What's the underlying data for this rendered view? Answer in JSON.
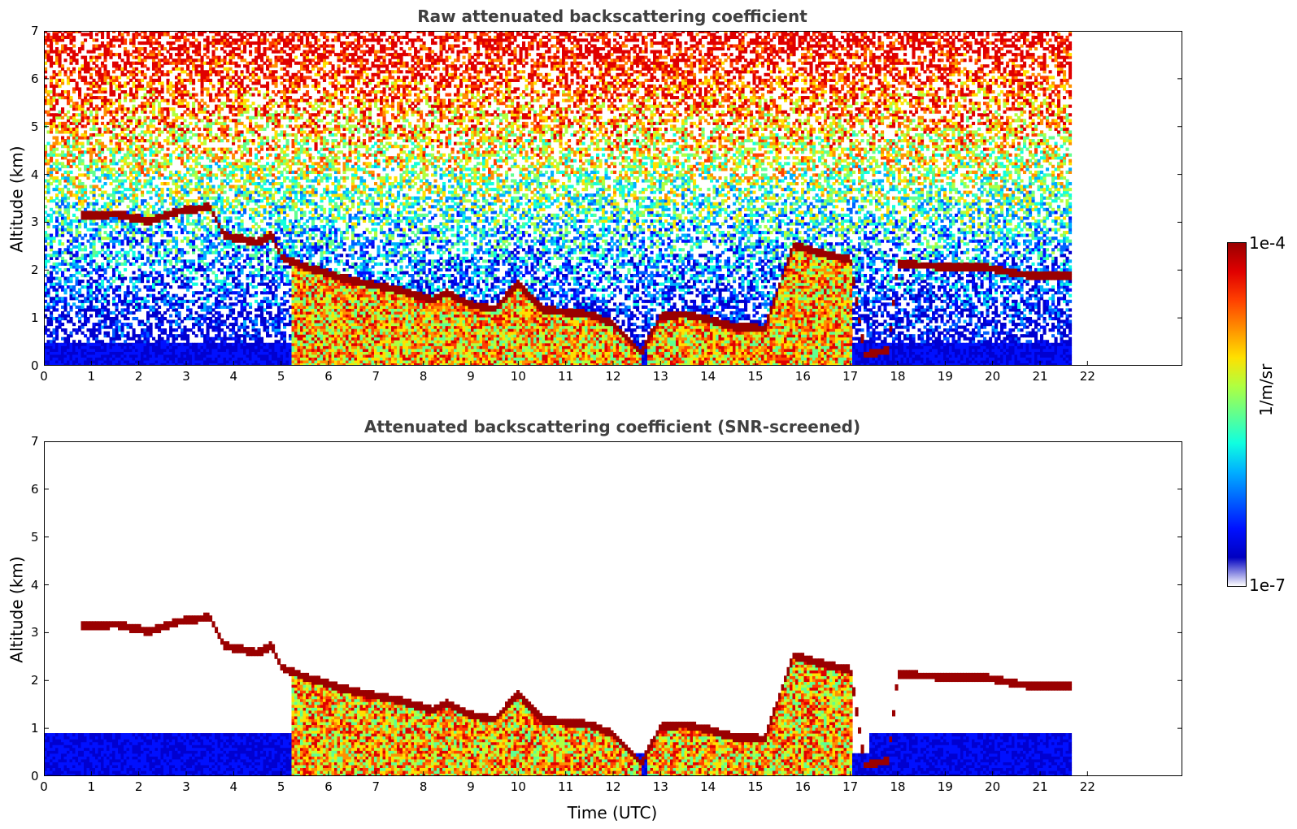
{
  "chart_data": [
    {
      "type": "heatmap",
      "title": "Raw attenuated backscattering coefficient",
      "xlabel": "",
      "ylabel": "Altitude (km)",
      "xlim": [
        0,
        24
      ],
      "ylim": [
        0,
        7
      ],
      "xticks": [
        0,
        1,
        2,
        3,
        4,
        5,
        6,
        7,
        8,
        9,
        10,
        11,
        12,
        13,
        14,
        15,
        16,
        17,
        18,
        19,
        20,
        21,
        22
      ],
      "yticks": [
        0,
        1,
        2,
        3,
        4,
        5,
        6,
        7
      ],
      "data_end_time": 21.65,
      "cloud_layer_heights": [
        [
          0.8,
          3.1
        ],
        [
          1.5,
          3.15
        ],
        [
          2.2,
          3.0
        ],
        [
          2.8,
          3.2
        ],
        [
          3.5,
          3.3
        ],
        [
          3.8,
          2.7
        ],
        [
          4.5,
          2.55
        ],
        [
          4.8,
          2.7
        ],
        [
          5.0,
          2.25
        ],
        [
          5.5,
          2.05
        ],
        [
          6.5,
          1.75
        ],
        [
          7.5,
          1.55
        ],
        [
          8.2,
          1.35
        ],
        [
          8.5,
          1.5
        ],
        [
          9.0,
          1.25
        ],
        [
          9.5,
          1.15
        ],
        [
          10.0,
          1.7
        ],
        [
          10.5,
          1.15
        ],
        [
          11.5,
          1.05
        ],
        [
          12.0,
          0.85
        ],
        [
          12.5,
          0.35
        ],
        [
          12.6,
          0.25
        ],
        [
          13.0,
          1.0
        ],
        [
          13.5,
          1.05
        ],
        [
          14.0,
          0.95
        ],
        [
          14.5,
          0.8
        ],
        [
          15.2,
          0.75
        ],
        [
          15.8,
          2.5
        ],
        [
          16.5,
          2.3
        ],
        [
          17.0,
          2.2
        ],
        [
          17.3,
          0.2
        ],
        [
          17.8,
          0.3
        ],
        [
          18.0,
          2.1
        ],
        [
          19.0,
          2.05
        ],
        [
          19.8,
          2.05
        ],
        [
          20.5,
          1.9
        ],
        [
          21.0,
          1.85
        ],
        [
          21.65,
          1.85
        ]
      ]
    },
    {
      "type": "heatmap",
      "title": "Attenuated backscattering coefficient (SNR-screened)",
      "xlabel": "Time (UTC)",
      "ylabel": "Altitude (km)",
      "xlim": [
        0,
        24
      ],
      "ylim": [
        0,
        7
      ],
      "xticks": [
        0,
        1,
        2,
        3,
        4,
        5,
        6,
        7,
        8,
        9,
        10,
        11,
        12,
        13,
        14,
        15,
        16,
        17,
        18,
        19,
        20,
        21,
        22
      ],
      "yticks": [
        0,
        1,
        2,
        3,
        4,
        5,
        6,
        7
      ],
      "data_end_time": 21.65
    }
  ],
  "colorbar": {
    "label": "1/m/sr",
    "max_label": "1e-4",
    "min_label": "1e-7",
    "colormap": "jet"
  }
}
